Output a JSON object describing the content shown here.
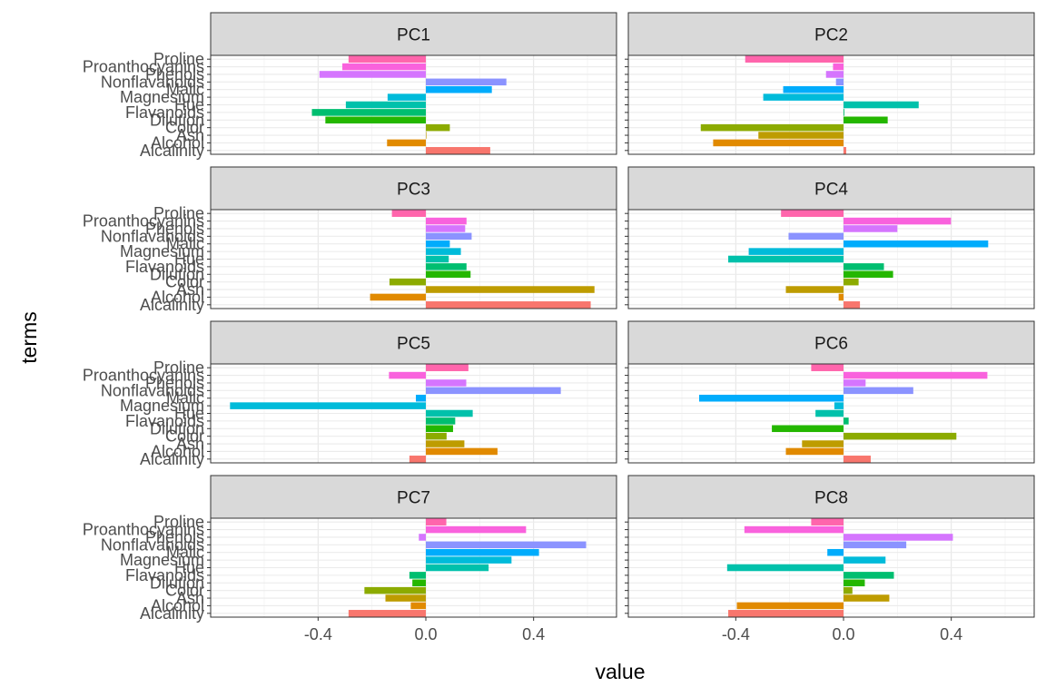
{
  "chart_data": {
    "type": "bar",
    "orientation": "horizontal",
    "xlabel": "value",
    "ylabel": "terms",
    "xlim": [
      -0.78,
      0.69
    ],
    "x_ticks": [
      -0.4,
      0.0,
      0.4
    ],
    "x_tick_labels": [
      "-0.4",
      "0.0",
      "0.4"
    ],
    "grid": true,
    "legend": "none",
    "terms": [
      "Alcalinity",
      "Alcohol",
      "Ash",
      "Color",
      "Dilution",
      "Flavanoids",
      "Hue",
      "Magnesium",
      "Malic",
      "Nonflavanoids",
      "Phenols",
      "Proanthocyanins",
      "Proline"
    ],
    "term_colors": [
      "#F8766D",
      "#E18A00",
      "#BE9C00",
      "#8CAB00",
      "#24B700",
      "#00BE70",
      "#00C1AB",
      "#00BBDA",
      "#00ACFC",
      "#8B93FF",
      "#D575FE",
      "#F962DD",
      "#FF65AC"
    ],
    "panels": [
      {
        "name": "PC1",
        "values": [
          0.239,
          -0.144,
          0.002,
          0.089,
          -0.373,
          -0.423,
          -0.297,
          -0.142,
          0.245,
          0.299,
          -0.395,
          -0.31,
          -0.287
        ]
      },
      {
        "name": "PC2",
        "values": [
          0.01,
          -0.484,
          -0.316,
          -0.53,
          0.164,
          0.003,
          0.279,
          -0.298,
          -0.224,
          -0.028,
          -0.065,
          -0.039,
          -0.365
        ]
      },
      {
        "name": "PC3",
        "values": [
          0.612,
          -0.207,
          0.626,
          -0.135,
          0.166,
          0.151,
          0.085,
          0.13,
          0.089,
          0.17,
          0.146,
          0.151,
          -0.126
        ]
      },
      {
        "name": "PC4",
        "values": [
          0.061,
          -0.018,
          -0.214,
          0.056,
          0.184,
          0.15,
          -0.428,
          -0.352,
          0.537,
          -0.204,
          0.2,
          0.399,
          -0.232
        ]
      },
      {
        "name": "PC5",
        "values": [
          -0.061,
          0.266,
          0.143,
          0.077,
          0.101,
          0.109,
          0.174,
          -0.727,
          -0.037,
          0.501,
          0.15,
          -0.137,
          0.158
        ]
      },
      {
        "name": "PC6",
        "values": [
          0.101,
          -0.214,
          -0.154,
          0.419,
          -0.266,
          0.019,
          -0.104,
          -0.034,
          -0.536,
          0.259,
          0.082,
          0.534,
          -0.12
        ]
      },
      {
        "name": "PC7",
        "values": [
          -0.287,
          -0.056,
          -0.15,
          -0.228,
          -0.05,
          -0.061,
          0.233,
          0.318,
          0.42,
          0.595,
          -0.026,
          0.372,
          0.076
        ]
      },
      {
        "name": "PC8",
        "values": [
          -0.428,
          -0.396,
          0.17,
          0.033,
          0.079,
          0.187,
          -0.432,
          0.156,
          -0.06,
          0.233,
          0.406,
          -0.368,
          -0.12
        ]
      }
    ]
  }
}
